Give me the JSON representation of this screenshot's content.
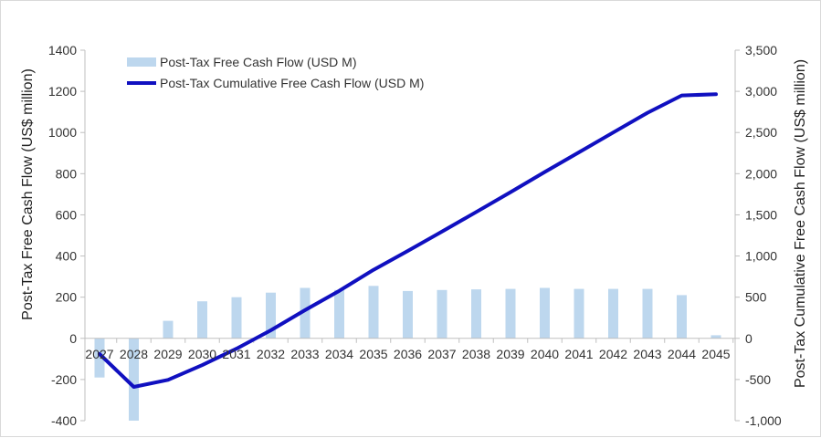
{
  "chart_data": {
    "type": "bar+line",
    "categories": [
      "2027",
      "2028",
      "2029",
      "2030",
      "2031",
      "2032",
      "2033",
      "2034",
      "2035",
      "2036",
      "2037",
      "2038",
      "2039",
      "2040",
      "2041",
      "2042",
      "2043",
      "2044",
      "2045"
    ],
    "series": [
      {
        "name": "Post-Tax Free Cash Flow (USD M)",
        "type": "bar",
        "axis": "left",
        "color": "#bdd7ee",
        "values": [
          -190,
          -400,
          85,
          180,
          200,
          222,
          245,
          235,
          255,
          230,
          235,
          238,
          240,
          245,
          240,
          240,
          240,
          210,
          15
        ]
      },
      {
        "name": "Post-Tax Cumulative Free Cash Flow (USD M)",
        "type": "line",
        "axis": "right",
        "color": "#1010c0",
        "values": [
          -190,
          -590,
          -505,
          -325,
          -125,
          97,
          342,
          577,
          832,
          1062,
          1297,
          1535,
          1775,
          2020,
          2260,
          2500,
          2740,
          2950,
          2965
        ]
      }
    ],
    "y_left": {
      "label": "Post-Tax Free Cash Flow (US$ million)",
      "range": [
        -400,
        1400
      ],
      "ticks": [
        -400,
        -200,
        0,
        200,
        400,
        600,
        800,
        1000,
        1200,
        1400
      ],
      "tick_labels": [
        "-400",
        "-200",
        "0",
        "200",
        "400",
        "600",
        "800",
        "1000",
        "1200",
        "1400"
      ]
    },
    "y_right": {
      "label": "Post-Tax Cumulative Free Cash Flow (US$ million)",
      "range": [
        -1000,
        3500
      ],
      "ticks": [
        -1000,
        -500,
        0,
        500,
        1000,
        1500,
        2000,
        2500,
        3000,
        3500
      ],
      "tick_labels": [
        "-1,000",
        "-500",
        "0",
        "500",
        "1,000",
        "1,500",
        "2,000",
        "2,500",
        "3,000",
        "3,500"
      ]
    },
    "legend_position": "top-left",
    "grid": false
  }
}
